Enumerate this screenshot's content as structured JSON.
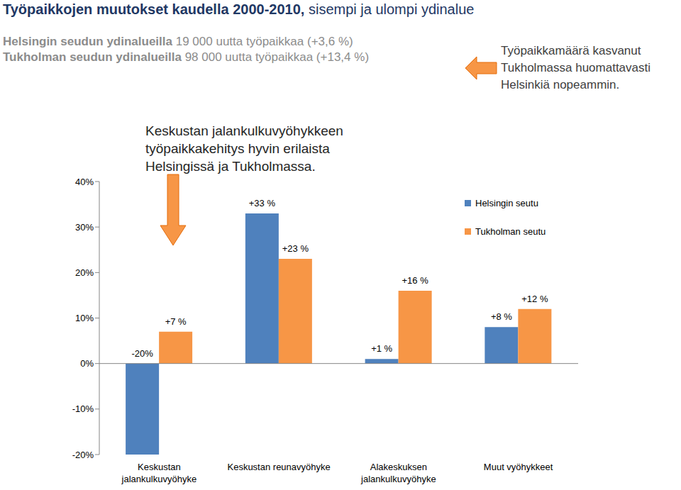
{
  "chart_data": {
    "type": "bar",
    "title": "Työpaikkojen muutokset kaudella 2000-2010,",
    "subtitle": "sisempi ja ulompi ydinalue",
    "annotations": [
      "Helsingin seudun ydinalueilla 19 000 uutta työpaikkaa (+3,6 %)",
      "Tukholman seudun ydinalueilla 98 000 uutta työpaikkaa (+13,4 %)",
      "Työpaikkamäärä kasvanut Tukholmassa huomattavasti Helsinkiä nopeammin.",
      "Keskustan jalankulkuvyöhykkeen työpaikkakehitys hyvin erilaista Helsingissä ja Tukholmassa."
    ],
    "categories": [
      "Keskustan jalankulkuvyöhyke",
      "Keskustan reunavyöhyke",
      "Alakeskuksen jalankulkuvyöhyke",
      "Muut vyöhykkeet"
    ],
    "series": [
      {
        "name": "Helsingin seutu",
        "color": "#4f81bd",
        "values": [
          -20,
          33,
          1,
          8
        ],
        "value_labels": [
          "-20%",
          "+33 %",
          "+1 %",
          "+8 %"
        ]
      },
      {
        "name": "Tukholman seutu",
        "color": "#f79646",
        "values": [
          7,
          23,
          16,
          12
        ],
        "value_labels": [
          "+7 %",
          "+23 %",
          "+16 %",
          "+12 %"
        ]
      }
    ],
    "ylim": [
      -20,
      40
    ],
    "yticks": [
      {
        "value": -20,
        "label": "-20%"
      },
      {
        "value": -10,
        "label": "-10%"
      },
      {
        "value": 0,
        "label": "0%"
      },
      {
        "value": 10,
        "label": "10%"
      },
      {
        "value": 20,
        "label": "20%"
      },
      {
        "value": 30,
        "label": "30%"
      },
      {
        "value": 40,
        "label": "40%"
      }
    ],
    "legend": "upper right",
    "grid": false,
    "data_labels": true
  }
}
